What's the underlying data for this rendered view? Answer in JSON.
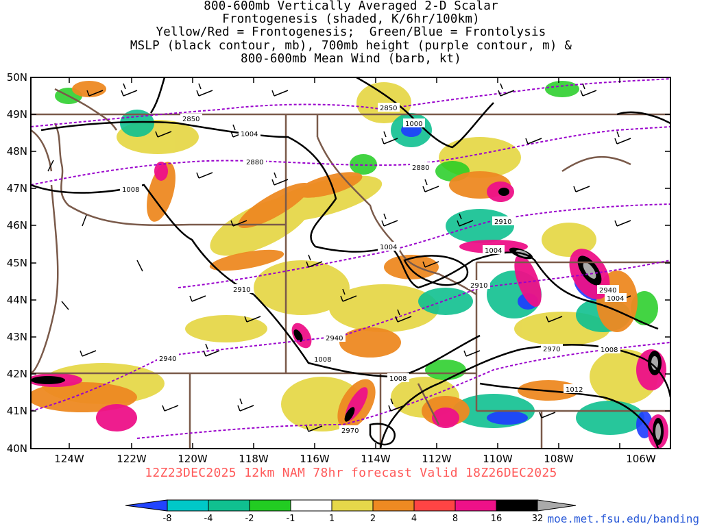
{
  "title_lines": [
    "800-600mb Vertically Averaged 2-D Scalar",
    "Frontogenesis (shaded, K/6hr/100km)",
    "Yellow/Red = Frontogenesis;  Green/Blue = Frontolysis",
    "MSLP (black contour, mb), 700mb height (purple contour, m) &",
    "800-600mb Mean Wind (barb, kt)"
  ],
  "run_label": "12Z23DEC2025 12km NAM 78hr forecast Valid 18Z26DEC2025",
  "credit": "moe.met.fsu.edu/banding",
  "map": {
    "lon_labels": [
      "124W",
      "122W",
      "120W",
      "118W",
      "116W",
      "114W",
      "112W",
      "110W",
      "108W",
      "106W"
    ],
    "lat_labels": [
      "50N",
      "49N",
      "48N",
      "47N",
      "46N",
      "45N",
      "44N",
      "43N",
      "42N",
      "41N",
      "40N"
    ],
    "mslp_contour_labels": [
      "1004",
      "1000",
      "1008",
      "1004",
      "1004",
      "1004",
      "1008",
      "1008",
      "1008",
      "1012"
    ],
    "height_contour_labels": [
      "2850",
      "2850",
      "2880",
      "2880",
      "2910",
      "2910",
      "2940",
      "2940",
      "2940",
      "2970",
      "2970",
      "2910"
    ],
    "colors": {
      "mslp": "#000000",
      "height": "#9900cc",
      "borders": "#7a5a4a",
      "frontolysis_strong": "#1e3cff",
      "frontolysis": "#00cc88",
      "frontogenesis_weak": "#e6d84a",
      "frontogenesis": "#ee8a22",
      "frontogenesis_strong": "#ee2288"
    }
  },
  "colorbar": {
    "labels": [
      "-8",
      "-4",
      "-2",
      "-1",
      "1",
      "2",
      "4",
      "8",
      "16",
      "32"
    ],
    "colors": [
      "#2244ff",
      "#00c8c8",
      "#10c090",
      "#22cc22",
      "#ffffff",
      "#e6d84a",
      "#ee8a22",
      "#ff4444",
      "#ee1188",
      "#000000",
      "#aaaaaa"
    ]
  }
}
